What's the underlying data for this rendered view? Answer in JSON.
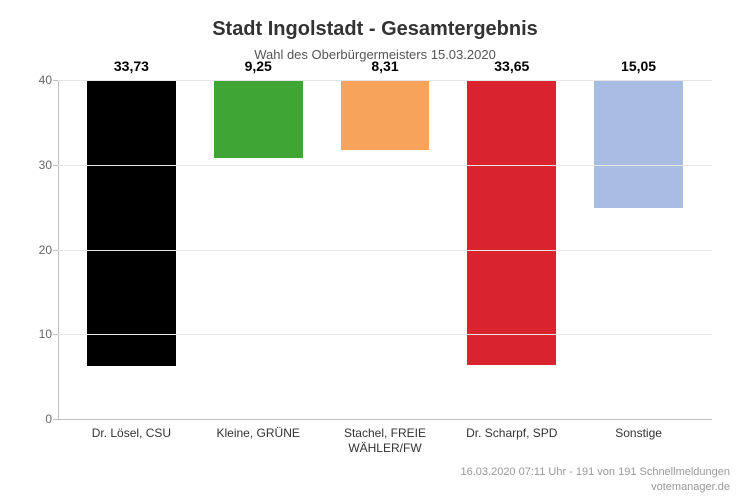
{
  "chart": {
    "type": "bar",
    "title": "Stadt Ingolstadt - Gesamtergebnis",
    "title_fontsize": 20,
    "subtitle": "Wahl des Oberbürgermeisters 15.03.2020",
    "subtitle_fontsize": 13,
    "background_color": "#ffffff",
    "grid_color": "#e6e6e6",
    "axis_color": "#c0c0c0",
    "text_color": "#333333",
    "ylim": [
      0,
      40
    ],
    "ytick_step": 10,
    "yticks": [
      0,
      10,
      20,
      30,
      40
    ],
    "bar_width_pct": 70,
    "value_fontsize": 14,
    "label_fontsize": 12,
    "categories": [
      "Dr. Lösel, CSU",
      "Kleine, GRÜNE",
      "Stachel, FREIE WÄHLER/FW",
      "Dr. Scharpf, SPD",
      "Sonstige"
    ],
    "values": [
      33.73,
      9.25,
      8.31,
      33.65,
      15.05
    ],
    "value_labels": [
      "33,73",
      "9,25",
      "8,31",
      "33,65",
      "15,05"
    ],
    "bar_colors": [
      "#000000",
      "#3fa535",
      "#f7a35c",
      "#d9232e",
      "#a9bde3"
    ]
  },
  "footer": {
    "line1": "16.03.2020 07:11 Uhr - 191 von 191 Schnellmeldungen",
    "line2": "votemanager.de"
  }
}
